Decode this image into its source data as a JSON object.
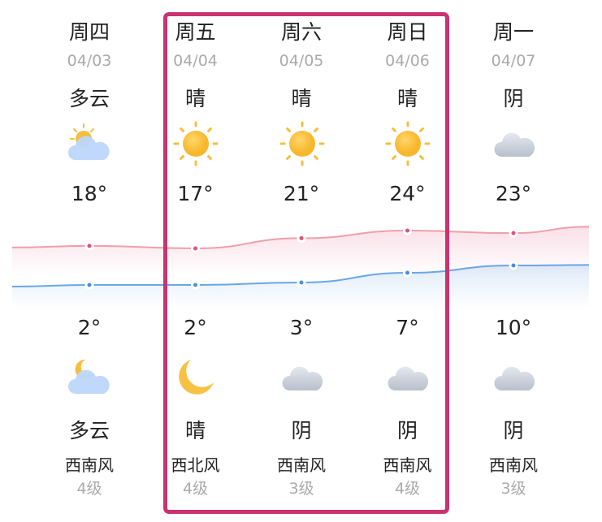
{
  "days": [
    {
      "day": "周四",
      "date": "04/03",
      "day_cond": "多云",
      "day_icon": "partly-cloudy-day",
      "high": "18°",
      "low": "2°",
      "night_icon": "partly-cloudy-night",
      "night_cond": "多云",
      "wind": "西南风",
      "level": "4级"
    },
    {
      "day": "周五",
      "date": "04/04",
      "day_cond": "晴",
      "day_icon": "sun",
      "high": "17°",
      "low": "2°",
      "night_icon": "moon",
      "night_cond": "晴",
      "wind": "西北风",
      "level": "4级"
    },
    {
      "day": "周六",
      "date": "04/05",
      "day_cond": "晴",
      "day_icon": "sun",
      "high": "21°",
      "low": "3°",
      "night_icon": "cloud",
      "night_cond": "阴",
      "wind": "西南风",
      "level": "3级"
    },
    {
      "day": "周日",
      "date": "04/06",
      "day_cond": "晴",
      "day_icon": "sun",
      "high": "24°",
      "low": "7°",
      "night_icon": "cloud",
      "night_cond": "阴",
      "wind": "西南风",
      "level": "4级"
    },
    {
      "day": "周一",
      "date": "04/07",
      "day_cond": "阴",
      "day_icon": "cloud",
      "high": "23°",
      "low": "10°",
      "night_icon": "cloud",
      "night_cond": "阴",
      "wind": "西南风",
      "level": "3级"
    }
  ],
  "chart_data": {
    "type": "line",
    "series": [
      {
        "values": [
          18,
          17,
          21,
          24,
          23
        ],
        "color": "#e0507a"
      },
      {
        "values": [
          2,
          2,
          3,
          7,
          10
        ],
        "color": "#4a8fe0"
      }
    ]
  },
  "highlight_color": "#c9336f"
}
